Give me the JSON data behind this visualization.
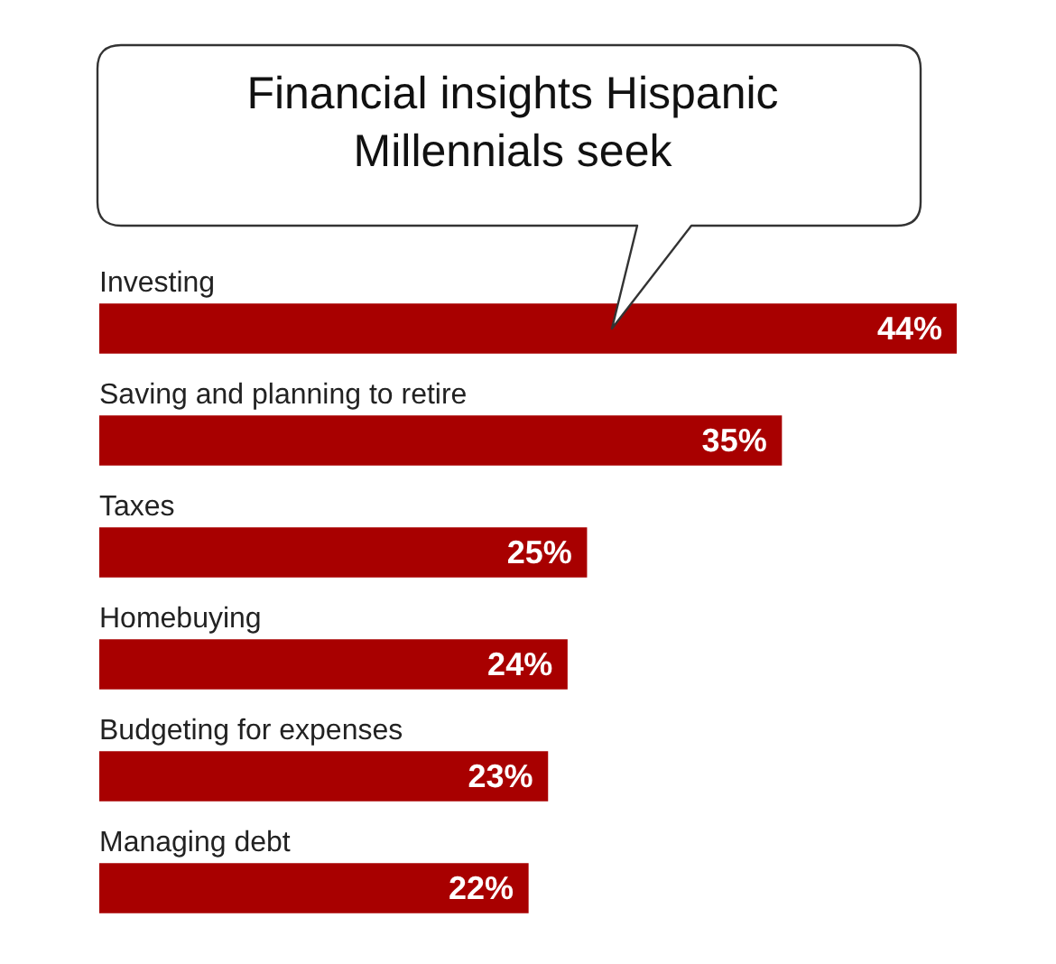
{
  "chart_data": {
    "type": "bar",
    "orientation": "horizontal",
    "title": "Financial insights Hispanic Millennials seek",
    "categories": [
      "Investing",
      "Saving and planning to retire",
      "Taxes",
      "Homebuying",
      "Budgeting for expenses",
      "Managing debt"
    ],
    "values": [
      44,
      35,
      25,
      24,
      23,
      22
    ],
    "value_labels": [
      "44%",
      "35%",
      "25%",
      "24%",
      "23%",
      "22%"
    ],
    "color": "#a80000",
    "legend": false
  }
}
